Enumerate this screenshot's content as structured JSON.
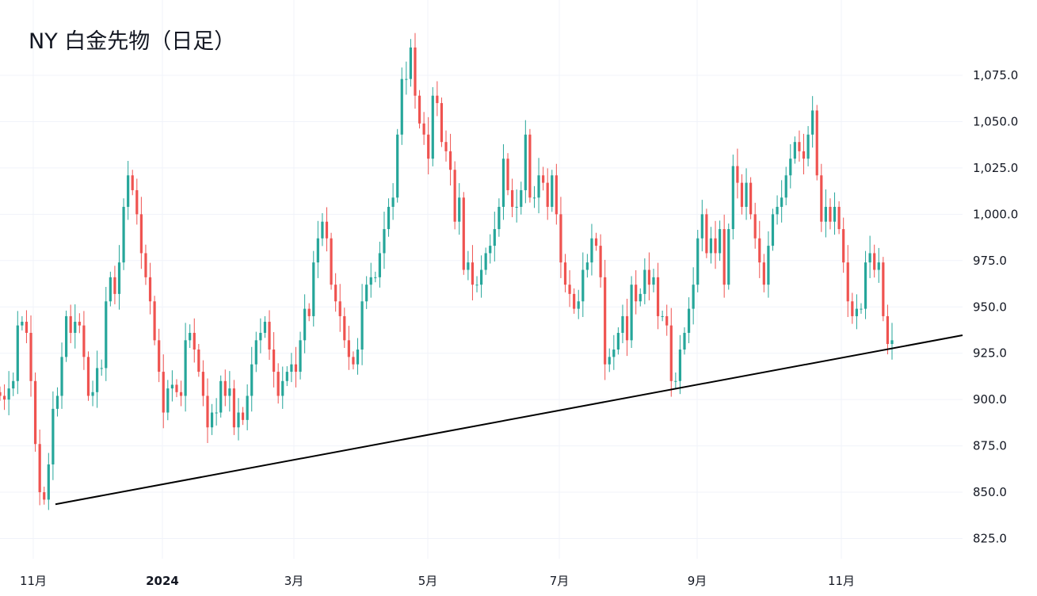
{
  "chart_data": {
    "type": "candlestick",
    "title": "NY 白金先物（日足）",
    "xlabel": "",
    "ylabel": "",
    "ylim": [
      812,
      1103
    ],
    "y_ticks": [
      "825.0",
      "850.0",
      "875.0",
      "900.0",
      "925.0",
      "950.0",
      "975.0",
      "1,000.0",
      "1,025.0",
      "1,050.0",
      "1,075.0"
    ],
    "y_tick_values": [
      825,
      850,
      875,
      900,
      925,
      950,
      975,
      1000,
      1025,
      1050,
      1075
    ],
    "x_ticks": [
      "11月",
      "2024",
      "3月",
      "5月",
      "7月",
      "9月",
      "11月"
    ],
    "grid": true,
    "colors": {
      "up": "#26a69a",
      "down": "#ef5350",
      "trendline": "#000000",
      "grid": "#f0f3fa"
    },
    "close": [
      902,
      900,
      906,
      910,
      940,
      942,
      936,
      910,
      876,
      850,
      846,
      865,
      895,
      902,
      923,
      945,
      936,
      942,
      940,
      923,
      902,
      904,
      917,
      917,
      953,
      966,
      957,
      974,
      1004,
      1021,
      1013,
      1000,
      979,
      966,
      953,
      932,
      915,
      893,
      906,
      908,
      904,
      902,
      932,
      936,
      927,
      915,
      902,
      885,
      893,
      893,
      910,
      902,
      906,
      885,
      893,
      889,
      902,
      919,
      932,
      936,
      942,
      927,
      915,
      902,
      910,
      915,
      919,
      915,
      932,
      949,
      945,
      974,
      987,
      996,
      987,
      962,
      953,
      945,
      932,
      923,
      919,
      927,
      953,
      962,
      966,
      966,
      979,
      992,
      1004,
      1009,
      1043,
      1073,
      1073,
      1090,
      1064,
      1049,
      1043,
      1030,
      1064,
      1060,
      1039,
      1034,
      1024,
      996,
      1009,
      970,
      974,
      962,
      962,
      970,
      979,
      983,
      992,
      1004,
      1030,
      1013,
      1004,
      1004,
      1013,
      1043,
      1009,
      1009,
      1021,
      1017,
      1004,
      1021,
      1000,
      974,
      962,
      957,
      949,
      953,
      970,
      974,
      987,
      983,
      966,
      919,
      923,
      927,
      936,
      945,
      932,
      962,
      953,
      957,
      970,
      962,
      966,
      945,
      945,
      940,
      910,
      910,
      927,
      936,
      949,
      962,
      987,
      1000,
      979,
      987,
      979,
      992,
      962,
      992,
      1026,
      1017,
      1004,
      1017,
      1000,
      987,
      974,
      962,
      983,
      1000,
      1004,
      1009,
      1021,
      1030,
      1039,
      1034,
      1030,
      1043,
      1056,
      1021,
      996,
      1004,
      996,
      1004,
      992,
      974,
      953,
      945,
      949,
      949,
      974,
      979,
      970,
      974,
      945,
      930,
      932
    ],
    "trendline": {
      "start_value": 843.5,
      "end_value": 934.7
    }
  }
}
